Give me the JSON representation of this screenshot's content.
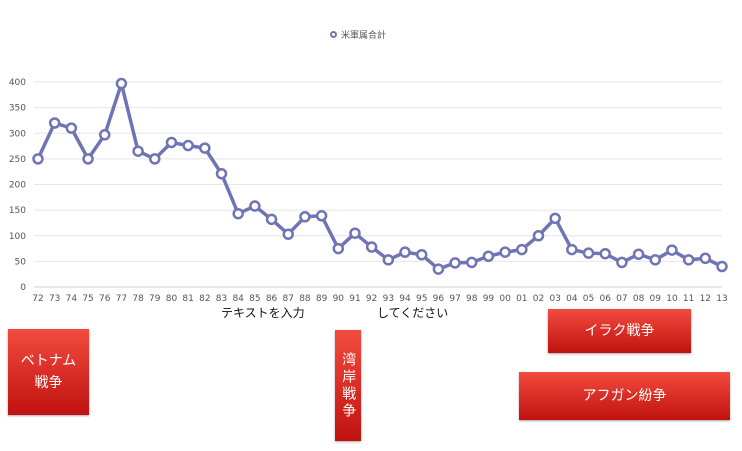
{
  "chart_data": {
    "type": "line",
    "series": [
      {
        "name": "米軍属合計",
        "color": "#6f74b5",
        "values": [
          250,
          320,
          310,
          250,
          297,
          397,
          265,
          250,
          282,
          276,
          271,
          221,
          143,
          158,
          132,
          103,
          137,
          139,
          75,
          105,
          78,
          53,
          68,
          63,
          35,
          47,
          48,
          60,
          68,
          73,
          100,
          134,
          73,
          66,
          65,
          48,
          64,
          53,
          72,
          53,
          56,
          40
        ]
      }
    ],
    "categories": [
      "72",
      "73",
      "74",
      "75",
      "76",
      "77",
      "78",
      "79",
      "80",
      "81",
      "82",
      "83",
      "84",
      "85",
      "86",
      "87",
      "88",
      "89",
      "90",
      "91",
      "92",
      "93",
      "94",
      "95",
      "96",
      "97",
      "98",
      "99",
      "00",
      "01",
      "02",
      "03",
      "04",
      "05",
      "06",
      "07",
      "08",
      "09",
      "10",
      "11",
      "12",
      "13"
    ],
    "yticks": [
      "0",
      "50",
      "100",
      "150",
      "200",
      "250",
      "300",
      "350",
      "400"
    ],
    "ylim": [
      0,
      420
    ],
    "grid": true,
    "legend_position": "top-center",
    "xlabel": "",
    "ylabel": ""
  },
  "overlay": {
    "text_left": "テキストを入力",
    "text_right": "してください"
  },
  "events": {
    "vietnam": "ベトナム\n戦争",
    "gulf": "湾岸戦争",
    "iraq": "イラク戦争",
    "afghan": "アフガン紛争"
  }
}
